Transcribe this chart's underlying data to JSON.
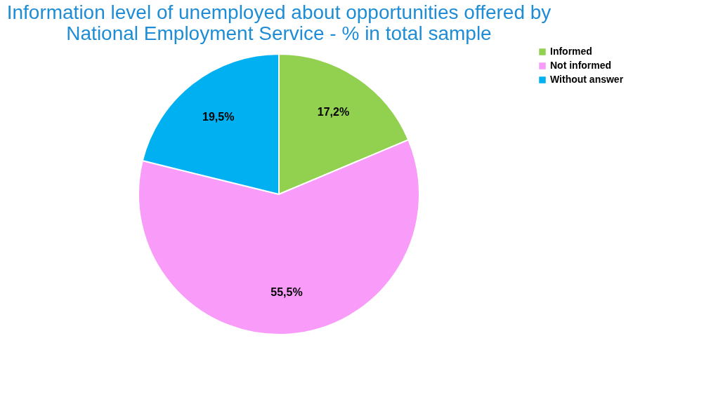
{
  "chart_data": {
    "type": "pie",
    "title": "Information level of unemployed  about opportunities offered by National Employment Service - % in total sample",
    "categories": [
      "Informed",
      "Not informed",
      "Without answer"
    ],
    "values": [
      17.2,
      55.5,
      19.5
    ],
    "colors": [
      "#92d050",
      "#f99bf9",
      "#00b0f0"
    ],
    "value_labels": [
      "17,2%",
      "55,5%",
      "19,5%"
    ],
    "legend": "right"
  }
}
